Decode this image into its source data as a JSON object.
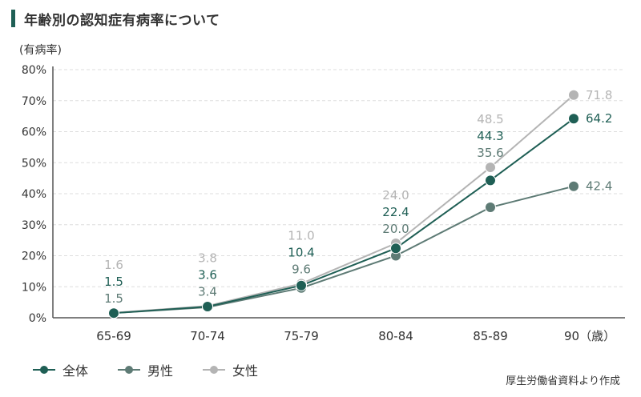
{
  "header": {
    "title": "年齢別の認知症有病率について"
  },
  "unit_label": "(有病率)",
  "source": "厚生労働省資料より作成",
  "colors": {
    "overall": "#1f5f55",
    "male": "#5e7b75",
    "female": "#b4b4b4",
    "axis": "#555555",
    "grid": "#dddddd"
  },
  "legend": [
    {
      "key": "overall",
      "label": "全体"
    },
    {
      "key": "male",
      "label": "男性"
    },
    {
      "key": "female",
      "label": "女性"
    }
  ],
  "chart_data": {
    "type": "line",
    "title": "年齢別の認知症有病率について",
    "ylabel": "(有病率)",
    "xlabel": "",
    "categories": [
      "65-69",
      "70-74",
      "75-79",
      "80-84",
      "85-89",
      "90（歳）"
    ],
    "ylim": [
      0,
      80
    ],
    "yticks": [
      "0%",
      "10%",
      "20%",
      "30%",
      "40%",
      "50%",
      "60%",
      "70%",
      "80%"
    ],
    "grid": true,
    "series": [
      {
        "key": "female",
        "name": "女性",
        "values": [
          1.6,
          3.8,
          11.0,
          24.0,
          48.5,
          71.8
        ],
        "labels": [
          "1.6",
          "3.8",
          "11.0",
          "24.0",
          "48.5",
          "71.8"
        ]
      },
      {
        "key": "overall",
        "name": "全体",
        "values": [
          1.5,
          3.6,
          10.4,
          22.4,
          44.3,
          64.2
        ],
        "labels": [
          "1.5",
          "3.6",
          "10.4",
          "22.4",
          "44.3",
          "64.2"
        ]
      },
      {
        "key": "male",
        "name": "男性",
        "values": [
          1.5,
          3.4,
          9.6,
          20.0,
          35.6,
          42.4
        ],
        "labels": [
          "1.5",
          "3.4",
          "9.6",
          "20.0",
          "35.6",
          "42.4"
        ]
      }
    ]
  }
}
